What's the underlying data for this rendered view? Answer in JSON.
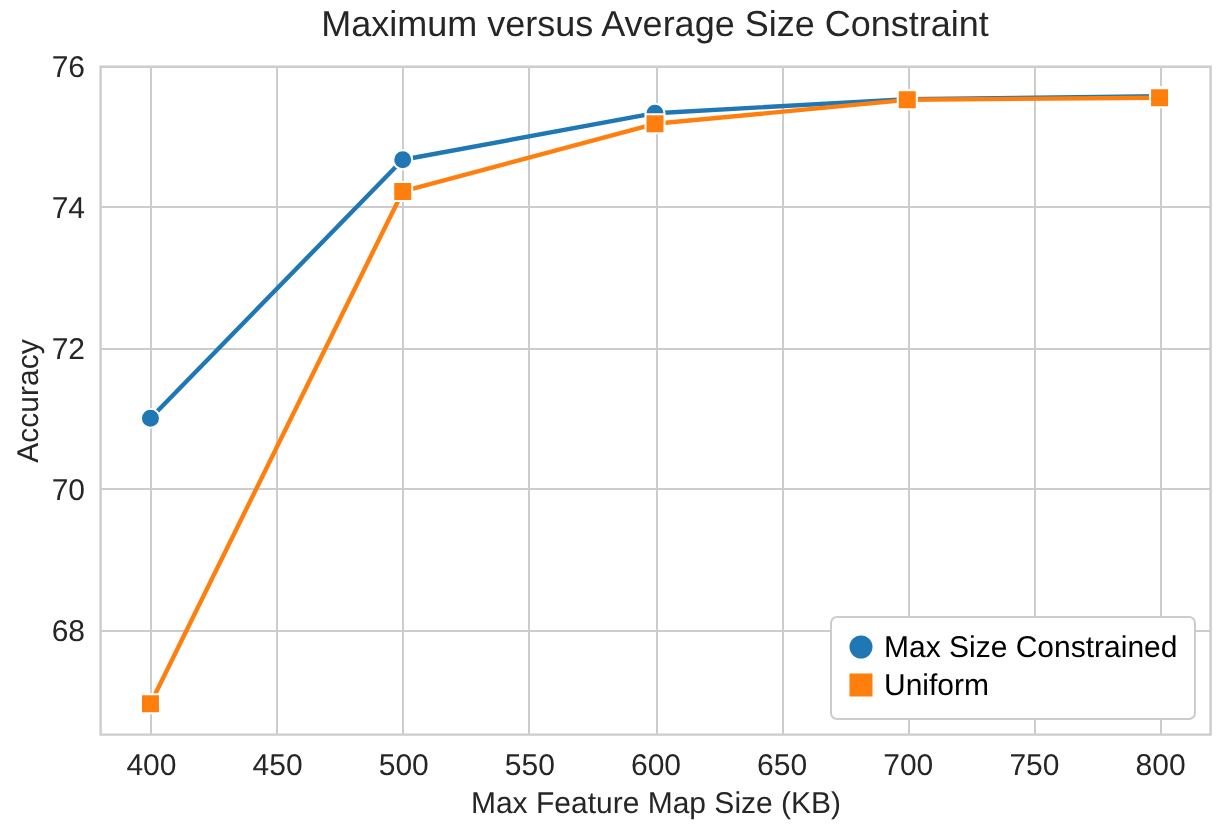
{
  "chart_data": {
    "type": "line",
    "title": "Maximum versus Average Size Constraint",
    "xlabel": "Max Feature Map Size (KB)",
    "ylabel": "Accuracy",
    "x": [
      400,
      500,
      600,
      700,
      800
    ],
    "series": [
      {
        "name": "Max Size Constrained",
        "color": "#1f77b4",
        "marker": "circle",
        "values": [
          71.0,
          74.67,
          75.33,
          75.53,
          75.57
        ]
      },
      {
        "name": "Uniform",
        "color": "#ff7f0e",
        "marker": "square",
        "values": [
          66.95,
          74.22,
          75.18,
          75.52,
          75.55
        ]
      }
    ],
    "xlim": [
      380,
      820
    ],
    "xticks": [
      400,
      450,
      500,
      550,
      600,
      650,
      700,
      750,
      800
    ],
    "ylim": [
      66.52,
      76
    ],
    "yticks": [
      68,
      70,
      72,
      74,
      76
    ],
    "grid": true,
    "legend": "bottom right",
    "line_style": "solid"
  }
}
